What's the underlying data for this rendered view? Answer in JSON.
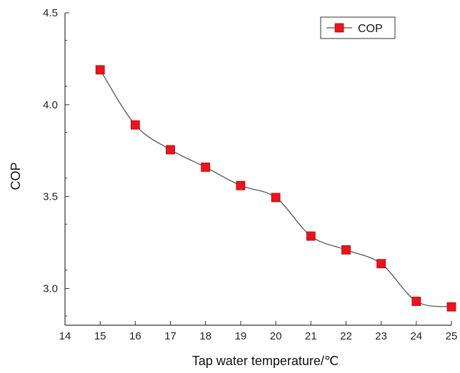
{
  "chart_data": {
    "type": "line",
    "title": "",
    "xlabel": "Tap water temperature/℃",
    "ylabel": "COP",
    "xlim": [
      14,
      25
    ],
    "ylim": [
      2.8,
      4.5
    ],
    "x_ticks": [
      14,
      15,
      16,
      17,
      18,
      19,
      20,
      21,
      22,
      23,
      24,
      25
    ],
    "y_ticks": [
      "3.0",
      "3.5",
      "4.0",
      "4.5"
    ],
    "y_tick_values": [
      3.0,
      3.5,
      4.0,
      4.5
    ],
    "legend_position": "top-right",
    "grid": false,
    "series": [
      {
        "name": "COP",
        "color": "#e8141e",
        "line_color": "#555555",
        "marker": "square",
        "x": [
          15,
          16,
          17,
          18,
          19,
          20,
          21,
          22,
          23,
          24,
          25
        ],
        "y": [
          4.19,
          3.89,
          3.755,
          3.66,
          3.56,
          3.495,
          3.285,
          3.21,
          3.135,
          2.93,
          2.9
        ]
      }
    ]
  }
}
